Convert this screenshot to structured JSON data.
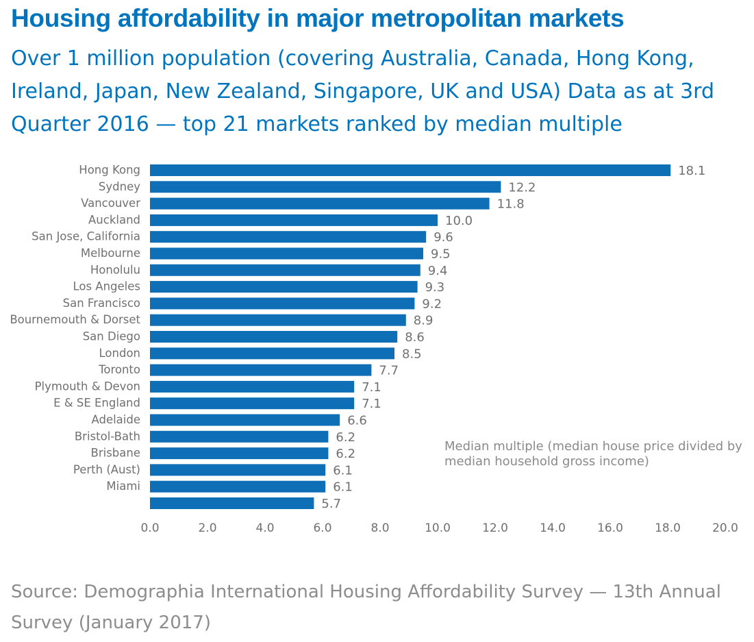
{
  "title": "Housing affordability in major metropolitan markets",
  "subtitle": "Over 1 million population (covering Australia, Canada, Hong Kong, Ireland, Japan, New Zealand, Singapore, UK and USA) Data as at 3rd Quarter 2016 — top 21 markets ranked by median multiple",
  "note": "Median multiple (median house price divided by median household gross income)",
  "source": "Source: Demographia International Housing Affordability Survey — 13th Annual Survey (January 2017)",
  "colors": {
    "bar": "#0f6fb6",
    "title": "#0075be",
    "text": "#707070"
  },
  "chart_data": {
    "type": "bar",
    "orientation": "horizontal",
    "categories": [
      "Hong Kong",
      "Sydney",
      "Vancouver",
      "Auckland",
      "San Jose, California",
      "Melbourne",
      "Honolulu",
      "Los Angeles",
      "San Francisco",
      "Bournemouth & Dorset",
      "San Diego",
      "London",
      "Toronto",
      "Plymouth & Devon",
      "E & SE England",
      "Adelaide",
      "Bristol-Bath",
      "Brisbane",
      "Perth (Aust)",
      "Miami",
      ""
    ],
    "values": [
      18.1,
      12.2,
      11.8,
      10.0,
      9.6,
      9.5,
      9.4,
      9.3,
      9.2,
      8.9,
      8.6,
      8.5,
      7.7,
      7.1,
      7.1,
      6.6,
      6.2,
      6.2,
      6.1,
      6.1,
      5.7
    ],
    "value_labels": [
      "18.1",
      "12.2",
      "11.8",
      "10.0",
      "9.6",
      "9.5",
      "9.4",
      "9.3",
      "9.2",
      "8.9",
      "8.6",
      "8.5",
      "7.7",
      "7.1",
      "7.1",
      "6.6",
      "6.2",
      "6.2",
      "6.1",
      "6.1",
      "5.7"
    ],
    "xlim": [
      0,
      20
    ],
    "xticks": [
      "0.0",
      "2.0",
      "4.0",
      "6.0",
      "8.0",
      "10.0",
      "12.0",
      "14.0",
      "16.0",
      "18.0",
      "20.0"
    ],
    "grid": false,
    "legend": false
  }
}
